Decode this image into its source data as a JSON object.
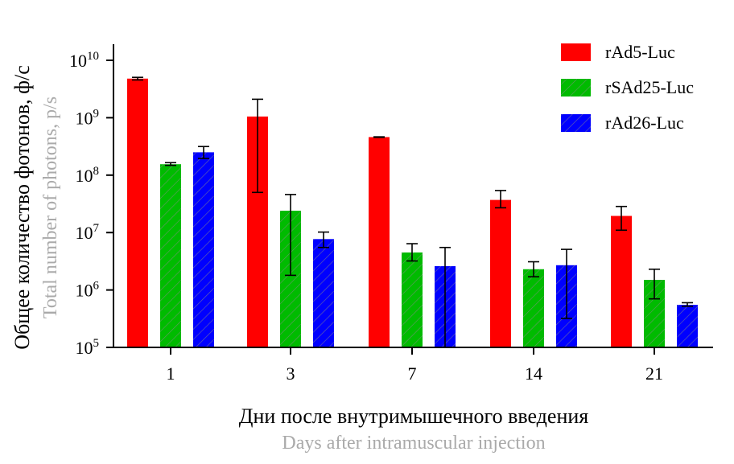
{
  "chart_data": {
    "type": "bar",
    "scale": "log10",
    "ylim": [
      100000,
      10000000000
    ],
    "ylabel_ru": "Общее количество фотонов, ф/с",
    "ylabel_en": "Total number of photons, p/s",
    "xlabel_ru": "Дни после внутримышечного введения",
    "xlabel_en": "Days after intramuscular injection",
    "y_ticks": [
      {
        "value": 100000,
        "base": "10",
        "exp": "5"
      },
      {
        "value": 1000000,
        "base": "10",
        "exp": "6"
      },
      {
        "value": 10000000,
        "base": "10",
        "exp": "7"
      },
      {
        "value": 100000000,
        "base": "10",
        "exp": "8"
      },
      {
        "value": 1000000000,
        "base": "10",
        "exp": "9"
      },
      {
        "value": 10000000000,
        "base": "10",
        "exp": "10"
      }
    ],
    "categories": [
      "1",
      "3",
      "7",
      "14",
      "21"
    ],
    "series": [
      {
        "name": "rAd5-Luc",
        "color": "#ff0000",
        "hatched": false,
        "values": [
          4800000000,
          1050000000,
          460000000,
          37000000,
          19500000
        ],
        "err_low": [
          4550000000,
          50000000,
          455000000,
          27000000,
          11000000
        ],
        "err_high": [
          5050000000,
          2100000000,
          465000000,
          54000000,
          28500000
        ]
      },
      {
        "name": "rSAd25-Luc",
        "color": "#00bb00",
        "hatched": true,
        "values": [
          155000000,
          24000000,
          4500000,
          2300000,
          1500000
        ],
        "err_low": [
          148000000,
          1800000,
          3200000,
          1700000,
          700000
        ],
        "err_high": [
          165000000,
          46000000,
          6400000,
          3100000,
          2300000
        ]
      },
      {
        "name": "rAd26-Luc",
        "color": "#0000ff",
        "hatched": true,
        "values": [
          250000000,
          7700000,
          2600000,
          2700000,
          550000
        ],
        "err_low": [
          195000000,
          5500000,
          100000,
          320000,
          520000
        ],
        "err_high": [
          315000000,
          10200000,
          5500000,
          5100000,
          600000
        ]
      }
    ]
  }
}
